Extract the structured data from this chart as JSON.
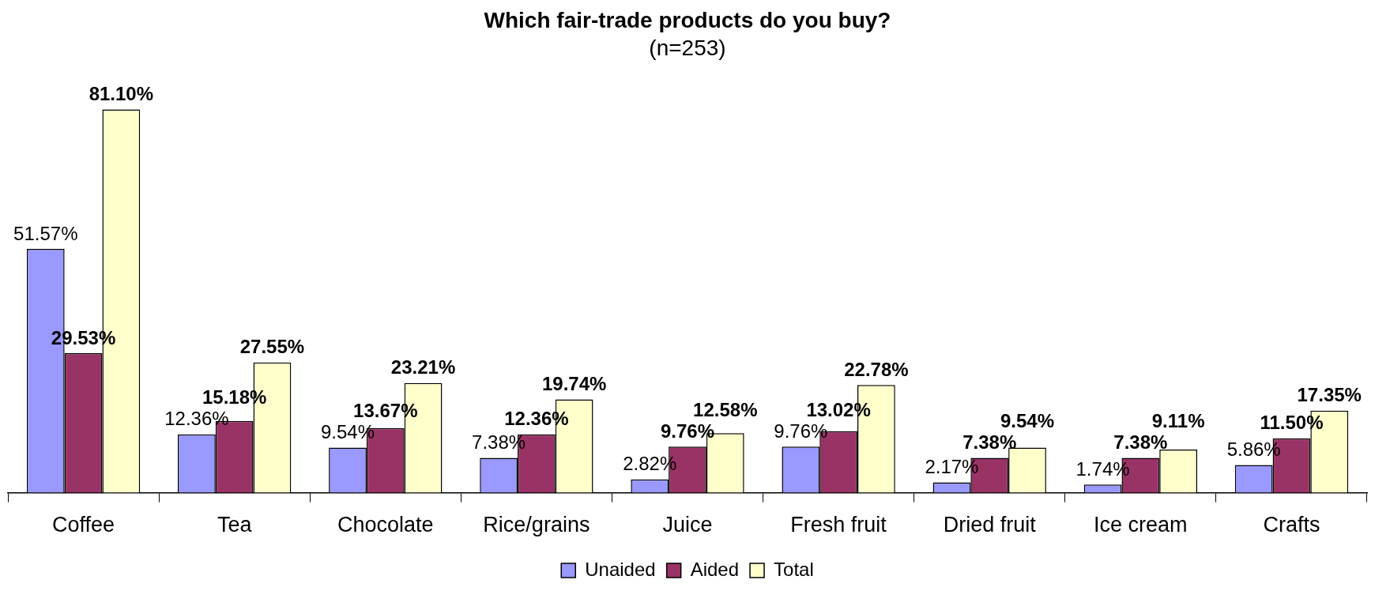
{
  "chart_data": {
    "type": "bar",
    "title": "Which fair-trade products do you buy?",
    "subtitle": "(n=253)",
    "categories": [
      "Coffee",
      "Tea",
      "Chocolate",
      "Rice/grains",
      "Juice",
      "Fresh fruit",
      "Dried fruit",
      "Ice cream",
      "Crafts"
    ],
    "series": [
      {
        "name": "Unaided",
        "color": "#9999ff",
        "values": [
          51.57,
          12.36,
          9.54,
          7.38,
          2.82,
          9.76,
          2.17,
          1.74,
          5.86
        ],
        "value_labels": [
          "51.57%",
          "12.36%",
          "9.54%",
          "7.38%",
          "2.82%",
          "9.76%",
          "2.17%",
          "1.74%",
          "5.86%"
        ]
      },
      {
        "name": "Aided",
        "color": "#993366",
        "values": [
          29.53,
          15.18,
          13.67,
          12.36,
          9.76,
          13.02,
          7.38,
          7.38,
          11.5
        ],
        "value_labels": [
          "29.53%",
          "15.18%",
          "13.67%",
          "12.36%",
          "9.76%",
          "13.02%",
          "7.38%",
          "7.38%",
          "11.50%"
        ]
      },
      {
        "name": "Total",
        "color": "#ffffcc",
        "values": [
          81.1,
          27.55,
          23.21,
          19.74,
          12.58,
          22.78,
          9.54,
          9.11,
          17.35
        ],
        "value_labels": [
          "81.10%",
          "27.55%",
          "23.21%",
          "19.74%",
          "12.58%",
          "22.78%",
          "9.54%",
          "9.11%",
          "17.35%"
        ]
      }
    ],
    "legend": "bottom",
    "grid": false
  }
}
